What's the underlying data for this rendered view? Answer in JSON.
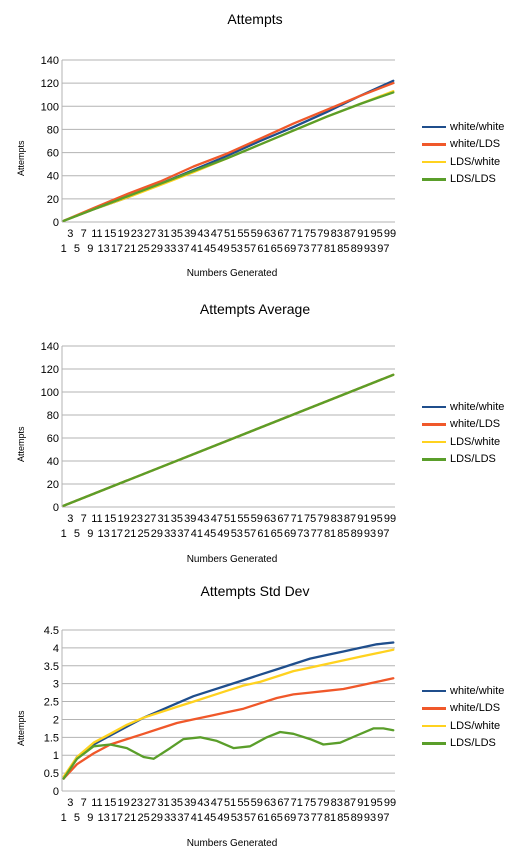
{
  "chart_data": [
    {
      "type": "line",
      "title": "Attempts",
      "xlabel": "Numbers Generated",
      "ylabel": "Attempts",
      "ylim": [
        0,
        140
      ],
      "yticks": [
        0,
        20,
        40,
        60,
        80,
        100,
        120,
        140
      ],
      "x_range": [
        1,
        100
      ],
      "x_tick_labels_row1": [
        "3",
        "7",
        "11",
        "15",
        "19",
        "23",
        "27",
        "31",
        "35",
        "39",
        "43",
        "47",
        "51",
        "55",
        "59",
        "63",
        "67",
        "71",
        "75",
        "79",
        "83",
        "87",
        "91",
        "95",
        "99"
      ],
      "x_tick_labels_row2": [
        "1",
        "5",
        "9",
        "13",
        "17",
        "21",
        "25",
        "29",
        "33",
        "37",
        "41",
        "45",
        "49",
        "53",
        "57",
        "61",
        "65",
        "69",
        "73",
        "77",
        "81",
        "85",
        "89",
        "93",
        "97"
      ],
      "grid": true,
      "legend_position": "right",
      "series": [
        {
          "name": "white/white",
          "color": "#1f4e8c",
          "x": [
            1,
            10,
            20,
            30,
            40,
            50,
            60,
            70,
            80,
            90,
            100
          ],
          "values": [
            1,
            11,
            21,
            33,
            45,
            57,
            70,
            82,
            95,
            109,
            122
          ]
        },
        {
          "name": "white/LDS",
          "color": "#f0582a",
          "x": [
            1,
            10,
            20,
            30,
            40,
            50,
            60,
            70,
            80,
            90,
            100
          ],
          "values": [
            1,
            12,
            24,
            35,
            48,
            59,
            72,
            85,
            97,
            109,
            120
          ]
        },
        {
          "name": "LDS/white",
          "color": "#ffd21f",
          "x": [
            1,
            10,
            20,
            30,
            40,
            50,
            60,
            70,
            80,
            90,
            100
          ],
          "values": [
            1,
            11,
            21,
            32,
            43,
            55,
            67,
            79,
            91,
            102,
            113
          ]
        },
        {
          "name": "LDS/LDS",
          "color": "#5a9e2a",
          "x": [
            1,
            10,
            20,
            30,
            40,
            50,
            60,
            70,
            80,
            90,
            100
          ],
          "values": [
            1,
            11,
            22,
            33,
            44,
            55,
            67,
            79,
            91,
            102,
            112
          ]
        }
      ]
    },
    {
      "type": "line",
      "title": "Attempts Average",
      "xlabel": "Numbers Generated",
      "ylabel": "Attempts",
      "ylim": [
        0,
        140
      ],
      "yticks": [
        0,
        20,
        40,
        60,
        80,
        100,
        120,
        140
      ],
      "x_range": [
        1,
        100
      ],
      "x_tick_labels_row1": [
        "3",
        "7",
        "11",
        "15",
        "19",
        "23",
        "27",
        "31",
        "35",
        "39",
        "43",
        "47",
        "51",
        "55",
        "59",
        "63",
        "67",
        "71",
        "75",
        "79",
        "83",
        "87",
        "91",
        "95",
        "99"
      ],
      "x_tick_labels_row2": [
        "1",
        "5",
        "9",
        "13",
        "17",
        "21",
        "25",
        "29",
        "33",
        "37",
        "41",
        "45",
        "49",
        "53",
        "57",
        "61",
        "65",
        "69",
        "73",
        "77",
        "81",
        "85",
        "89",
        "93",
        "97"
      ],
      "grid": true,
      "legend_position": "right",
      "series": [
        {
          "name": "white/white",
          "color": "#1f4e8c",
          "x": [
            1,
            100
          ],
          "values": [
            1.15,
            115
          ]
        },
        {
          "name": "white/LDS",
          "color": "#f0582a",
          "x": [
            1,
            100
          ],
          "values": [
            1.15,
            115
          ]
        },
        {
          "name": "LDS/white",
          "color": "#ffd21f",
          "x": [
            1,
            100
          ],
          "values": [
            1.15,
            115
          ]
        },
        {
          "name": "LDS/LDS",
          "color": "#5a9e2a",
          "x": [
            1,
            100
          ],
          "values": [
            1.15,
            115
          ]
        }
      ]
    },
    {
      "type": "line",
      "title": "Attempts Std Dev",
      "xlabel": "Numbers Generated",
      "ylabel": "Attempts",
      "ylim": [
        0,
        4.5
      ],
      "yticks": [
        0,
        0.5,
        1,
        1.5,
        2,
        2.5,
        3,
        3.5,
        4,
        4.5
      ],
      "x_range": [
        1,
        100
      ],
      "x_tick_labels_row1": [
        "3",
        "7",
        "11",
        "15",
        "19",
        "23",
        "27",
        "31",
        "35",
        "39",
        "43",
        "47",
        "51",
        "55",
        "59",
        "63",
        "67",
        "71",
        "75",
        "79",
        "83",
        "87",
        "91",
        "95",
        "99"
      ],
      "x_tick_labels_row2": [
        "1",
        "5",
        "9",
        "13",
        "17",
        "21",
        "25",
        "29",
        "33",
        "37",
        "41",
        "45",
        "49",
        "53",
        "57",
        "61",
        "65",
        "69",
        "73",
        "77",
        "81",
        "85",
        "89",
        "93",
        "97"
      ],
      "grid": true,
      "legend_position": "right",
      "series": [
        {
          "name": "white/white",
          "color": "#1f4e8c",
          "x": [
            1,
            5,
            10,
            15,
            20,
            25,
            30,
            35,
            40,
            45,
            50,
            55,
            60,
            65,
            70,
            75,
            80,
            85,
            90,
            95,
            100
          ],
          "values": [
            0.35,
            0.95,
            1.3,
            1.55,
            1.8,
            2.05,
            2.25,
            2.45,
            2.65,
            2.8,
            2.95,
            3.1,
            3.25,
            3.4,
            3.55,
            3.7,
            3.8,
            3.9,
            4.0,
            4.1,
            4.15
          ]
        },
        {
          "name": "white/LDS",
          "color": "#f0582a",
          "x": [
            1,
            5,
            10,
            15,
            20,
            25,
            30,
            35,
            40,
            45,
            50,
            55,
            60,
            65,
            70,
            75,
            80,
            85,
            90,
            95,
            100
          ],
          "values": [
            0.35,
            0.75,
            1.05,
            1.3,
            1.45,
            1.6,
            1.75,
            1.9,
            2.0,
            2.1,
            2.2,
            2.3,
            2.45,
            2.6,
            2.7,
            2.75,
            2.8,
            2.85,
            2.95,
            3.05,
            3.15
          ]
        },
        {
          "name": "LDS/white",
          "color": "#ffd21f",
          "x": [
            1,
            5,
            10,
            15,
            20,
            25,
            30,
            35,
            40,
            45,
            50,
            55,
            60,
            65,
            70,
            75,
            80,
            85,
            90,
            95,
            100
          ],
          "values": [
            0.4,
            0.95,
            1.35,
            1.6,
            1.85,
            2.05,
            2.2,
            2.35,
            2.5,
            2.65,
            2.8,
            2.95,
            3.05,
            3.2,
            3.35,
            3.45,
            3.55,
            3.65,
            3.75,
            3.85,
            3.95
          ]
        },
        {
          "name": "LDS/LDS",
          "color": "#5a9e2a",
          "x": [
            1,
            5,
            10,
            15,
            20,
            25,
            28,
            33,
            37,
            42,
            47,
            52,
            57,
            62,
            66,
            70,
            75,
            79,
            84,
            89,
            94,
            97,
            100
          ],
          "values": [
            0.35,
            0.9,
            1.25,
            1.3,
            1.2,
            0.95,
            0.9,
            1.2,
            1.45,
            1.5,
            1.4,
            1.2,
            1.25,
            1.5,
            1.65,
            1.6,
            1.45,
            1.3,
            1.35,
            1.55,
            1.75,
            1.75,
            1.7
          ]
        }
      ]
    }
  ]
}
